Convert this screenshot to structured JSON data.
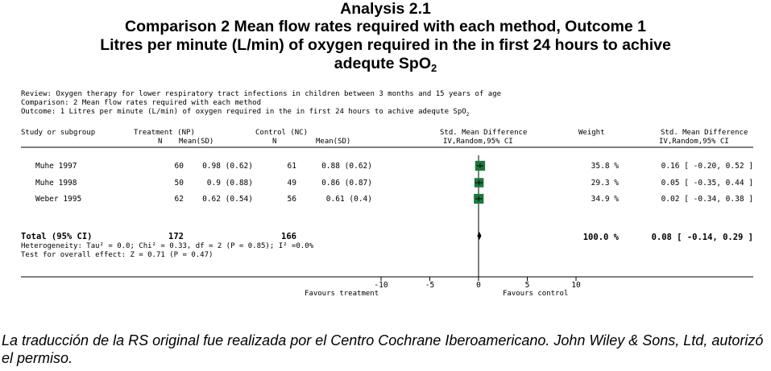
{
  "header": {
    "line1": "Analysis 2.1",
    "line2": "Comparison 2 Mean flow rates required with each method, Outcome 1",
    "line3": "Litres per minute (L/min) of oxygen required in the in first 24 hours to achive",
    "line4_main": "adequte SpO",
    "line4_sub": "2"
  },
  "meta": {
    "review": "Review:  Oxygen therapy for lower respiratory tract infections in children between 3 months and 15 years of age",
    "comparison": "Comparison:  2 Mean flow rates required with each method",
    "outcome_main": "Outcome:  1 Litres per minute (L/min) of oxygen required in the in first 24 hours to achive adequte SpO",
    "outcome_sub": "2"
  },
  "columns": {
    "study": "Study or subgroup",
    "treatment": "Treatment (NP)",
    "control": "Control (NC)",
    "n": "N",
    "meansd": "Mean(SD)",
    "smd_plot_line1": "Std. Mean Difference",
    "smd_plot_line2": "IV,Random,95% CI",
    "weight": "Weight",
    "smd_line1": "Std. Mean Difference",
    "smd_line2": "IV,Random,95% CI"
  },
  "studies": [
    {
      "name": "Muhe 1997",
      "t_n": "60",
      "t_meansd": "0.98 (0.62)",
      "c_n": "61",
      "c_meansd": "0.88 (0.62)",
      "weight": "35.8 %",
      "ci_text": "0.16 [ -0.20, 0.52 ]",
      "smd": 0.16,
      "lo": -0.2,
      "hi": 0.52,
      "w": 35.8
    },
    {
      "name": "Muhe 1998",
      "t_n": "50",
      "t_meansd": "0.9 (0.88)",
      "c_n": "49",
      "c_meansd": "0.86 (0.87)",
      "weight": "29.3 %",
      "ci_text": "0.05 [ -0.35, 0.44 ]",
      "smd": 0.05,
      "lo": -0.35,
      "hi": 0.44,
      "w": 29.3
    },
    {
      "name": "Weber 1995",
      "t_n": "62",
      "t_meansd": "0.62 (0.54)",
      "c_n": "56",
      "c_meansd": "0.61 (0.4)",
      "weight": "34.9 %",
      "ci_text": "0.02 [ -0.34, 0.38 ]",
      "smd": 0.02,
      "lo": -0.34,
      "hi": 0.38,
      "w": 34.9
    }
  ],
  "total": {
    "label": "Total (95% CI)",
    "t_n": "172",
    "c_n": "166",
    "weight": "100.0 %",
    "ci_text": "0.08 [ -0.14, 0.29 ]",
    "smd": 0.08,
    "lo": -0.14,
    "hi": 0.29
  },
  "heterogeneity": "Heterogeneity: Tau² = 0.0; Chi² = 0.33, df = 2 (P = 0.85); I² =0.0%",
  "overall_effect": "Test for overall effect: Z = 0.71 (P = 0.47)",
  "axis": {
    "ticks": [
      -10,
      -5,
      0,
      5,
      10
    ],
    "tick_labels": [
      "-10",
      "-5",
      "0",
      "5",
      "10"
    ],
    "favours_left": "Favours treatment",
    "favours_right": "Favours control"
  },
  "chart_data": {
    "type": "scatter",
    "title": "",
    "xlabel": "",
    "xlim": [
      -10,
      10
    ],
    "x_ticks": [
      -10,
      -5,
      0,
      5,
      10
    ],
    "categories": [
      "Muhe 1997",
      "Muhe 1998",
      "Weber 1995",
      "Total (95% CI)"
    ],
    "series": [
      {
        "values": [
          0.16,
          0.05,
          0.02,
          0.08
        ],
        "ci_low": [
          -0.2,
          -0.35,
          -0.34,
          -0.14
        ],
        "ci_high": [
          0.52,
          0.44,
          0.38,
          0.29
        ],
        "weights": [
          35.8,
          29.3,
          34.9,
          100.0
        ]
      }
    ],
    "colors": {
      "marker": "#1a7a3a",
      "line": "#000000"
    }
  },
  "caption": "La traducción de la RS original fue realizada por el Centro Cochrane Iberoamericano. John Wiley & Sons, Ltd, autorizó el permiso."
}
